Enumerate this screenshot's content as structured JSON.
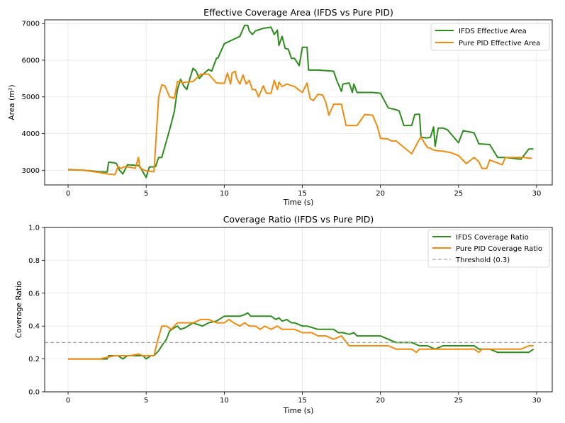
{
  "chart_data": [
    {
      "type": "line",
      "title": "Effective Coverage Area (IFDS vs Pure PID)",
      "xlabel": "Time (s)",
      "ylabel": "Area (m²)",
      "xlim": [
        -1.5,
        31
      ],
      "ylim": [
        2600,
        7100
      ],
      "xticks": [
        0,
        5,
        10,
        15,
        20,
        25,
        30
      ],
      "yticks": [
        3000,
        4000,
        5000,
        6000,
        7000
      ],
      "xtick_labels": [
        "0",
        "5",
        "10",
        "15",
        "20",
        "25",
        "30"
      ],
      "ytick_labels": [
        "3000",
        "4000",
        "5000",
        "6000",
        "7000"
      ],
      "grid": true,
      "legend_position": "top-right",
      "series": [
        {
          "name": "IFDS Effective Area",
          "color": "#2e8b1e",
          "x": [
            0,
            1,
            2,
            2.5,
            2.6,
            3.0,
            3.1,
            3.3,
            3.5,
            3.8,
            4.5,
            4.6,
            5.0,
            5.2,
            5.4,
            5.6,
            5.8,
            6.0,
            6.3,
            6.5,
            6.8,
            7.0,
            7.2,
            7.4,
            7.6,
            7.8,
            8.0,
            8.2,
            8.4,
            8.6,
            9.0,
            9.2,
            9.5,
            9.6,
            10.0,
            10.5,
            11.0,
            11.3,
            11.5,
            11.6,
            11.8,
            12.0,
            12.5,
            13.0,
            13.2,
            13.4,
            13.5,
            13.7,
            13.9,
            14.1,
            14.3,
            14.5,
            14.8,
            15.0,
            15.3,
            15.4,
            16.0,
            17.0,
            17.2,
            17.5,
            17.6,
            18.0,
            18.2,
            18.3,
            18.5,
            19.0,
            19.5,
            20.0,
            20.5,
            21.0,
            21.2,
            21.5,
            22.0,
            22.2,
            22.5,
            22.6,
            23.0,
            23.2,
            23.4,
            23.5,
            23.7,
            24.0,
            24.3,
            25.0,
            25.3,
            26.0,
            26.3,
            27.0,
            27.5,
            28.0,
            29.0,
            29.5,
            29.8
          ],
          "y": [
            3020,
            3000,
            2960,
            2950,
            3220,
            3200,
            3180,
            3000,
            2900,
            3150,
            3130,
            3100,
            2800,
            3090,
            3090,
            3100,
            3350,
            3350,
            3800,
            4100,
            4600,
            5200,
            5480,
            5300,
            5200,
            5500,
            5780,
            5700,
            5500,
            5600,
            5750,
            5700,
            6050,
            6060,
            6450,
            6550,
            6650,
            6950,
            6950,
            6800,
            6700,
            6800,
            6870,
            6900,
            6700,
            6820,
            6400,
            6650,
            6320,
            6300,
            6050,
            6050,
            5850,
            6350,
            6350,
            5730,
            5730,
            5700,
            5450,
            5150,
            5350,
            5380,
            5120,
            5350,
            5120,
            5120,
            5120,
            5100,
            4700,
            4650,
            4620,
            4220,
            4220,
            4520,
            4530,
            3900,
            3880,
            3900,
            4180,
            3650,
            4150,
            4150,
            4100,
            3750,
            4080,
            4020,
            3720,
            3700,
            3350,
            3350,
            3300,
            3580,
            3580
          ]
        },
        {
          "name": "Pure PID Effective Area",
          "color": "#f18b0f",
          "x": [
            0,
            1,
            2,
            2.5,
            3.0,
            3.2,
            3.4,
            3.6,
            4.0,
            4.3,
            4.5,
            4.6,
            5.0,
            5.5,
            5.8,
            6.0,
            6.2,
            6.5,
            6.8,
            7.0,
            7.2,
            7.3,
            7.5,
            8.0,
            8.5,
            9.0,
            9.5,
            10.0,
            10.2,
            10.4,
            10.5,
            10.7,
            10.8,
            11.0,
            11.2,
            11.4,
            11.6,
            11.8,
            12.0,
            12.2,
            12.5,
            12.7,
            13.0,
            13.2,
            13.4,
            13.5,
            13.7,
            14.0,
            14.5,
            15.0,
            15.3,
            15.5,
            15.7,
            16.0,
            16.3,
            16.5,
            16.7,
            17.0,
            17.5,
            17.8,
            18.0,
            18.5,
            19.0,
            19.5,
            19.8,
            20.0,
            20.5,
            20.7,
            21.0,
            22.0,
            22.5,
            22.6,
            23.0,
            23.2,
            23.4,
            23.5,
            24.0,
            24.5,
            25.0,
            25.5,
            26.0,
            26.3,
            26.5,
            26.8,
            27.0,
            27.5,
            27.8,
            28.0,
            29.0,
            29.2,
            29.5,
            29.7
          ],
          "y": [
            3010,
            3000,
            2940,
            2900,
            2880,
            3100,
            3050,
            3100,
            3080,
            3050,
            3350,
            3060,
            2980,
            2960,
            5000,
            5330,
            5300,
            5000,
            4960,
            5420,
            5420,
            5380,
            5400,
            5420,
            5620,
            5620,
            5380,
            5370,
            5650,
            5350,
            5650,
            5700,
            5500,
            5350,
            5600,
            5350,
            5450,
            5200,
            5200,
            5000,
            5300,
            5100,
            5100,
            5450,
            5200,
            5400,
            5280,
            5350,
            5280,
            5120,
            5380,
            4950,
            4900,
            5070,
            5050,
            4850,
            4500,
            4800,
            4800,
            4220,
            4220,
            4220,
            4520,
            4500,
            4200,
            3870,
            3850,
            3800,
            3800,
            3450,
            3850,
            3900,
            3620,
            3600,
            3550,
            3540,
            3520,
            3480,
            3400,
            3180,
            3350,
            3230,
            3050,
            3050,
            3280,
            3200,
            3150,
            3350,
            3350,
            3350,
            3330,
            3330
          ]
        }
      ]
    },
    {
      "type": "line",
      "title": "Coverage Ratio (IFDS vs Pure PID)",
      "xlabel": "Time (s)",
      "ylabel": "Coverage Ratio",
      "xlim": [
        -1.5,
        31
      ],
      "ylim": [
        0.0,
        1.0
      ],
      "xticks": [
        0,
        5,
        10,
        15,
        20,
        25,
        30
      ],
      "yticks": [
        0.0,
        0.2,
        0.4,
        0.6,
        0.8,
        1.0
      ],
      "xtick_labels": [
        "0",
        "5",
        "10",
        "15",
        "20",
        "25",
        "30"
      ],
      "ytick_labels": [
        "0.0",
        "0.2",
        "0.4",
        "0.6",
        "0.8",
        "1.0"
      ],
      "grid": true,
      "legend_position": "top-right",
      "series": [
        {
          "name": "IFDS Coverage Ratio",
          "color": "#2e8b1e",
          "x": [
            0,
            1,
            2,
            2.5,
            2.6,
            3.0,
            3.2,
            3.5,
            3.8,
            4.5,
            4.8,
            5.0,
            5.3,
            5.5,
            5.8,
            6.0,
            6.3,
            6.5,
            6.8,
            7.0,
            7.2,
            7.5,
            8.0,
            8.3,
            8.6,
            9.0,
            9.5,
            10.0,
            10.5,
            11.0,
            11.3,
            11.5,
            11.7,
            12.0,
            13.0,
            13.3,
            13.5,
            13.7,
            14.0,
            14.3,
            14.5,
            15.0,
            15.3,
            16.0,
            17.0,
            17.3,
            17.6,
            18.0,
            18.3,
            18.5,
            19.0,
            20.0,
            20.5,
            21.0,
            22.0,
            22.5,
            23.0,
            23.5,
            24.0,
            25.0,
            26.0,
            26.3,
            27.0,
            27.5,
            28.0,
            29.0,
            29.5,
            29.8
          ],
          "y": [
            0.2,
            0.2,
            0.2,
            0.2,
            0.22,
            0.22,
            0.22,
            0.2,
            0.22,
            0.22,
            0.22,
            0.2,
            0.22,
            0.22,
            0.25,
            0.28,
            0.32,
            0.37,
            0.39,
            0.4,
            0.38,
            0.39,
            0.42,
            0.41,
            0.4,
            0.42,
            0.43,
            0.46,
            0.46,
            0.46,
            0.47,
            0.48,
            0.46,
            0.46,
            0.46,
            0.44,
            0.45,
            0.43,
            0.44,
            0.42,
            0.42,
            0.4,
            0.4,
            0.38,
            0.38,
            0.36,
            0.36,
            0.35,
            0.36,
            0.34,
            0.34,
            0.34,
            0.32,
            0.3,
            0.3,
            0.28,
            0.28,
            0.26,
            0.28,
            0.28,
            0.28,
            0.26,
            0.26,
            0.24,
            0.24,
            0.24,
            0.24,
            0.26
          ]
        },
        {
          "name": "Pure PID Coverage Ratio",
          "color": "#f18b0f",
          "x": [
            0,
            1,
            2,
            3.0,
            4.0,
            4.5,
            4.8,
            5.0,
            5.5,
            5.7,
            6.0,
            6.3,
            6.6,
            7.0,
            7.3,
            7.6,
            8.0,
            8.5,
            9.0,
            9.5,
            10.0,
            10.3,
            10.6,
            11.0,
            11.3,
            11.6,
            12.0,
            12.3,
            12.6,
            13.0,
            13.4,
            13.7,
            14.0,
            14.5,
            15.0,
            15.3,
            15.6,
            16.0,
            16.5,
            17.0,
            17.5,
            18.0,
            19.0,
            20.0,
            20.5,
            21.0,
            22.0,
            22.3,
            22.5,
            23.0,
            24.0,
            25.0,
            26.0,
            26.3,
            26.5,
            27.0,
            28.0,
            29.0,
            29.5,
            29.8
          ],
          "y": [
            0.2,
            0.2,
            0.2,
            0.22,
            0.22,
            0.23,
            0.22,
            0.22,
            0.22,
            0.3,
            0.4,
            0.4,
            0.38,
            0.42,
            0.42,
            0.42,
            0.42,
            0.44,
            0.44,
            0.42,
            0.42,
            0.44,
            0.42,
            0.4,
            0.42,
            0.4,
            0.4,
            0.38,
            0.4,
            0.38,
            0.4,
            0.38,
            0.38,
            0.38,
            0.36,
            0.36,
            0.36,
            0.34,
            0.34,
            0.32,
            0.34,
            0.28,
            0.28,
            0.28,
            0.28,
            0.26,
            0.26,
            0.24,
            0.26,
            0.26,
            0.26,
            0.26,
            0.26,
            0.24,
            0.26,
            0.26,
            0.26,
            0.26,
            0.28,
            0.28
          ]
        },
        {
          "name": "Threshold (0.3)",
          "color": "#aaaaaa",
          "dashed": true,
          "value": 0.3
        }
      ]
    }
  ]
}
